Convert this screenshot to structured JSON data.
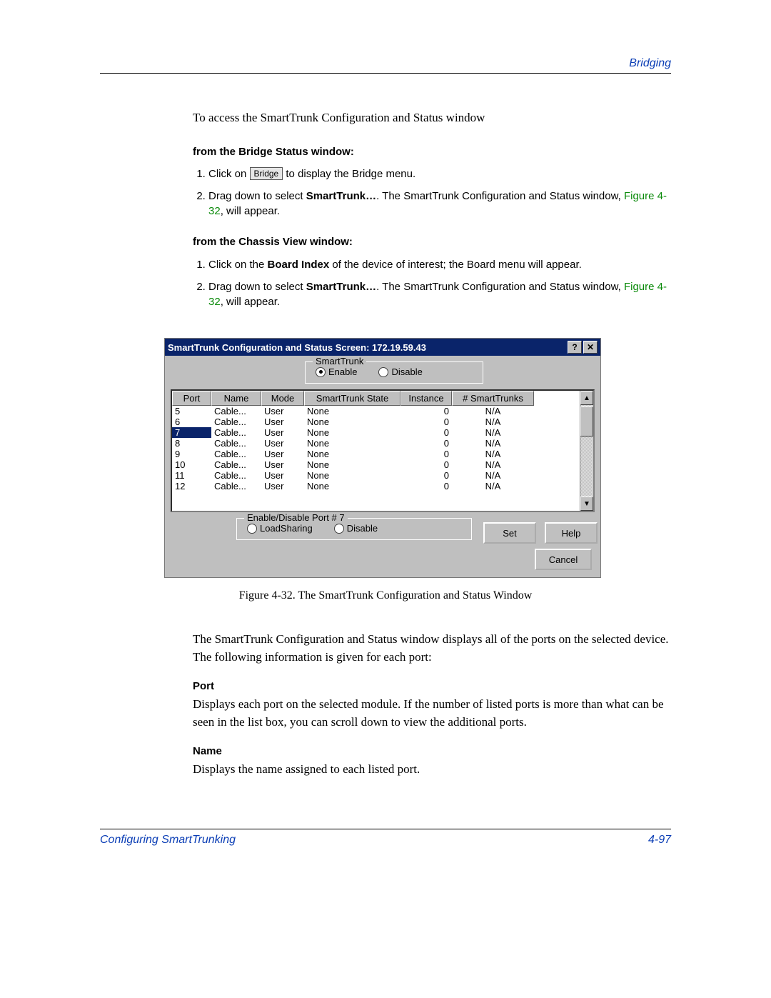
{
  "header": {
    "right": "Bridging"
  },
  "intro": "To access the SmartTrunk Configuration and Status window",
  "section1": {
    "title": "from the Bridge Status window:",
    "step1_a": "Click on ",
    "bridge_btn": "Bridge",
    "step1_b": " to display the Bridge menu.",
    "step2_a": "Drag down to select ",
    "step2_bold": "SmartTrunk…",
    "step2_b": ". The SmartTrunk Configuration and Status window, ",
    "step2_fig": "Figure 4-32",
    "step2_c": ", will appear."
  },
  "section2": {
    "title": "from the Chassis View window:",
    "step1_a": "Click on the ",
    "step1_bold": "Board Index",
    "step1_b": " of the device of interest; the Board menu will appear.",
    "step2_a": "Drag down to select ",
    "step2_bold": "SmartTrunk…",
    "step2_b": ". The SmartTrunk Configuration and Status window, ",
    "step2_fig": "Figure 4-32",
    "step2_c": ", will appear."
  },
  "window": {
    "title": "SmartTrunk Configuration and Status Screen: 172.19.59.43",
    "help_btn": "?",
    "close_btn": "✕",
    "group_smarttrunk": {
      "legend": "SmartTrunk",
      "enable": "Enable",
      "disable": "Disable",
      "selected": "enable"
    },
    "columns": {
      "port": "Port",
      "name": "Name",
      "mode": "Mode",
      "state": "SmartTrunk State",
      "instance": "Instance",
      "trunks": "# SmartTrunks"
    },
    "rows": [
      {
        "port": "5",
        "name": "Cable...",
        "mode": "User",
        "state": "None",
        "instance": "0",
        "trunks": "N/A"
      },
      {
        "port": "6",
        "name": "Cable...",
        "mode": "User",
        "state": "None",
        "instance": "0",
        "trunks": "N/A"
      },
      {
        "port": "7",
        "name": "Cable...",
        "mode": "User",
        "state": "None",
        "instance": "0",
        "trunks": "N/A",
        "selected": true
      },
      {
        "port": "8",
        "name": "Cable...",
        "mode": "User",
        "state": "None",
        "instance": "0",
        "trunks": "N/A"
      },
      {
        "port": "9",
        "name": "Cable...",
        "mode": "User",
        "state": "None",
        "instance": "0",
        "trunks": "N/A"
      },
      {
        "port": "10",
        "name": "Cable...",
        "mode": "User",
        "state": "None",
        "instance": "0",
        "trunks": "N/A"
      },
      {
        "port": "11",
        "name": "Cable...",
        "mode": "User",
        "state": "None",
        "instance": "0",
        "trunks": "N/A"
      },
      {
        "port": "12",
        "name": "Cable...",
        "mode": "User",
        "state": "None",
        "instance": "0",
        "trunks": "N/A"
      }
    ],
    "group_port": {
      "legend": "Enable/Disable Port # 7",
      "loadsharing": "LoadSharing",
      "disable": "Disable"
    },
    "buttons": {
      "set": "Set",
      "help": "Help",
      "cancel": "Cancel"
    }
  },
  "caption": "Figure 4-32. The SmartTrunk Configuration and Status Window",
  "para_after": "The SmartTrunk Configuration and Status window displays all of the ports on the selected device. The following information is given for each port:",
  "def_port": {
    "title": "Port",
    "text": "Displays each port on the selected module. If the number of listed ports is more than what can be seen in the list box, you can scroll down to view the additional ports."
  },
  "def_name": {
    "title": "Name",
    "text": "Displays the name assigned to each listed port."
  },
  "footer": {
    "left": "Configuring SmartTrunking",
    "right": "4-97"
  },
  "style": {
    "accent_blue": "#0a3db5",
    "fig_green": "#0a8a0a",
    "win_title_bg": "#0a246a",
    "ui_gray": "#bfbfbf"
  }
}
